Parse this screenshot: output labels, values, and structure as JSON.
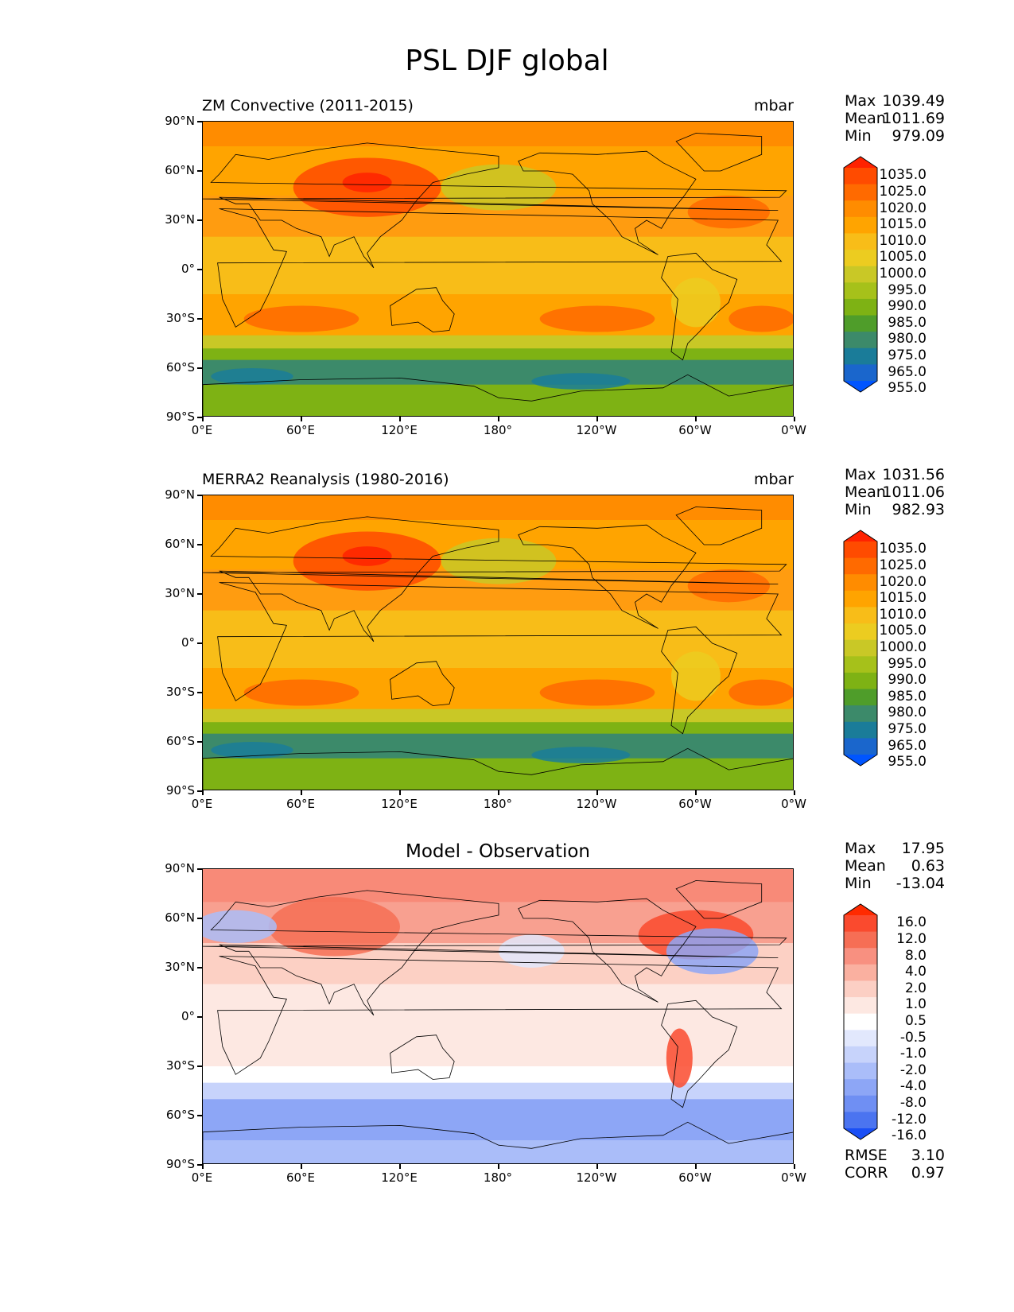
{
  "title": "PSL DJF global",
  "axes": {
    "lat_labels": [
      "90°N",
      "60°N",
      "30°N",
      "0°",
      "30°S",
      "60°S",
      "90°S"
    ],
    "lon_labels": [
      "0°E",
      "60°E",
      "120°E",
      "180°",
      "120°W",
      "60°W",
      "0°W"
    ]
  },
  "panels": [
    {
      "title": "ZM Convective (2011-2015)",
      "units": "mbar",
      "stats": [
        {
          "label": "Max",
          "value": "1039.49"
        },
        {
          "label": "Mean",
          "value": "1011.69"
        },
        {
          "label": "Min",
          "value": "979.09"
        }
      ],
      "colorbar": {
        "levels": [
          "1035.0",
          "1025.0",
          "1020.0",
          "1015.0",
          "1010.0",
          "1005.0",
          "1000.0",
          "995.0",
          "990.0",
          "985.0",
          "980.0",
          "975.0",
          "965.0",
          "955.0"
        ],
        "colors": [
          "#ff2200",
          "#ff4b00",
          "#ff6a00",
          "#ff8c00",
          "#ffa400",
          "#f8bd18",
          "#eccc20",
          "#c9c826",
          "#a6c11a",
          "#7eb214",
          "#4f9d2a",
          "#3c8a6a",
          "#1a7c99",
          "#1a66cc",
          "#0055ff"
        ]
      }
    },
    {
      "title": "MERRA2 Reanalysis (1980-2016)",
      "units": "mbar",
      "stats": [
        {
          "label": "Max",
          "value": "1031.56"
        },
        {
          "label": "Mean",
          "value": "1011.06"
        },
        {
          "label": "Min",
          "value": "982.93"
        }
      ],
      "colorbar": {
        "levels": [
          "1035.0",
          "1025.0",
          "1020.0",
          "1015.0",
          "1010.0",
          "1005.0",
          "1000.0",
          "995.0",
          "990.0",
          "985.0",
          "980.0",
          "975.0",
          "965.0",
          "955.0"
        ],
        "colors": [
          "#ff2200",
          "#ff4b00",
          "#ff6a00",
          "#ff8c00",
          "#ffa400",
          "#f8bd18",
          "#eccc20",
          "#c9c826",
          "#a6c11a",
          "#7eb214",
          "#4f9d2a",
          "#3c8a6a",
          "#1a7c99",
          "#1a66cc",
          "#0055ff"
        ]
      }
    },
    {
      "title": "Model - Observation",
      "units": "",
      "stats": [
        {
          "label": "Max",
          "value": "17.95"
        },
        {
          "label": "Mean",
          "value": "0.63"
        },
        {
          "label": "Min",
          "value": "-13.04"
        }
      ],
      "colorbar": {
        "levels": [
          "16.0",
          "12.0",
          "8.0",
          "4.0",
          "2.0",
          "1.0",
          "0.5",
          "-0.5",
          "-1.0",
          "-2.0",
          "-4.0",
          "-8.0",
          "-12.0",
          "-16.0"
        ],
        "colors": [
          "#ff2a00",
          "#fa4a2e",
          "#f66e55",
          "#f89080",
          "#fab0a0",
          "#fccfc4",
          "#fde8e2",
          "#ffffff",
          "#e2e8fd",
          "#c7d3fb",
          "#aabdf9",
          "#8da6f6",
          "#6f8ff3",
          "#4b74f0",
          "#1a4ff5"
        ]
      },
      "footer": [
        {
          "label": "RMSE",
          "value": "3.10"
        },
        {
          "label": "CORR",
          "value": "0.97"
        }
      ]
    }
  ]
}
